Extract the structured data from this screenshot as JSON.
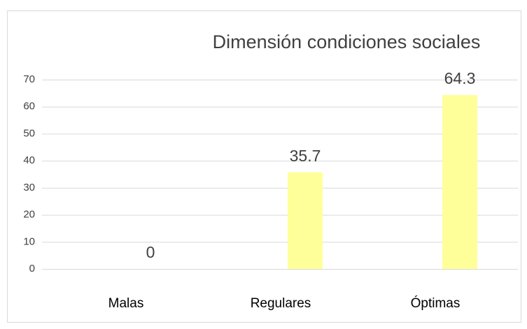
{
  "chart_data": {
    "type": "bar",
    "title": "Dimensión condiciones sociales",
    "categories": [
      "Malas",
      "Regulares",
      "Óptimas"
    ],
    "values": [
      0,
      35.7,
      64.3
    ],
    "color": "#ffff99",
    "ylim": [
      0,
      70
    ],
    "yticks": [
      0,
      10,
      20,
      30,
      40,
      50,
      60,
      70
    ],
    "grid": true
  }
}
